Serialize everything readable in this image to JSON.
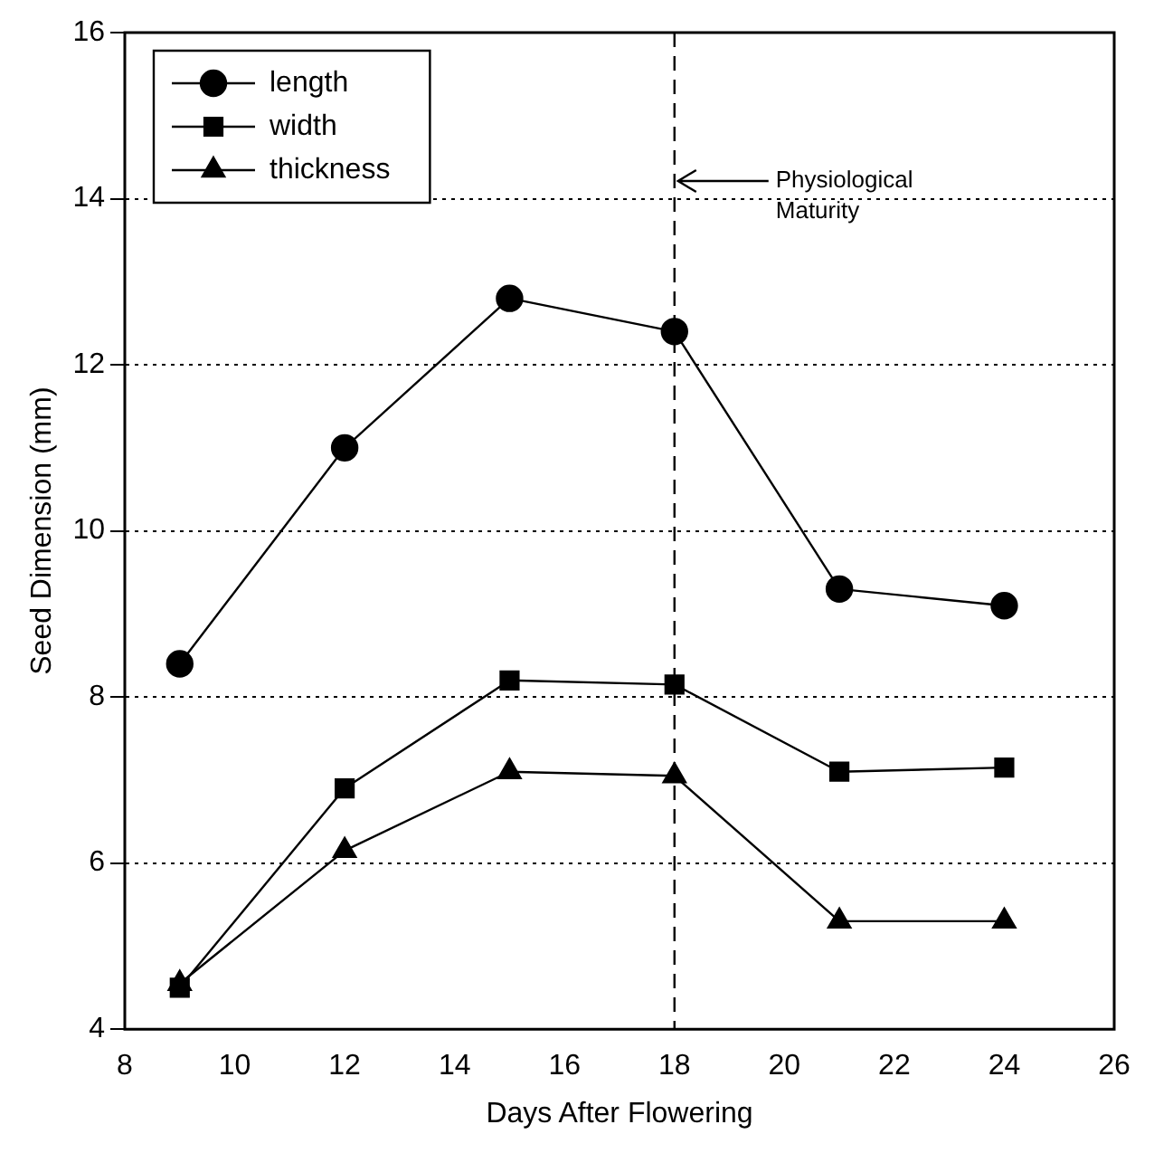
{
  "chart_data": {
    "type": "line",
    "xlabel": "Days After Flowering",
    "ylabel": "Seed Dimension (mm)",
    "x": [
      9,
      12,
      15,
      18,
      21,
      24
    ],
    "series": [
      {
        "name": "length",
        "color": "#000000",
        "marker": "circle",
        "values": [
          8.4,
          11.0,
          12.8,
          12.4,
          9.3,
          9.1
        ]
      },
      {
        "name": "width",
        "color": "#000000",
        "marker": "square",
        "values": [
          4.5,
          6.9,
          8.2,
          8.15,
          7.1,
          7.15
        ]
      },
      {
        "name": "thickness",
        "color": "#000000",
        "marker": "triangle",
        "values": [
          4.55,
          6.15,
          7.1,
          7.05,
          5.3,
          5.3
        ]
      }
    ],
    "xlim": [
      8,
      26
    ],
    "xticks": [
      8,
      10,
      12,
      14,
      16,
      18,
      20,
      22,
      24,
      26
    ],
    "ylim": [
      4,
      16
    ],
    "yticks": [
      4,
      6,
      8,
      10,
      12,
      14,
      16
    ],
    "grid": "y",
    "line_style": "solid",
    "legend": "top left",
    "ref_lines": [
      {
        "axis": "x",
        "value": 18,
        "label": "Physiological Maturity",
        "line_style": "dashed",
        "color": "#000000"
      }
    ]
  }
}
